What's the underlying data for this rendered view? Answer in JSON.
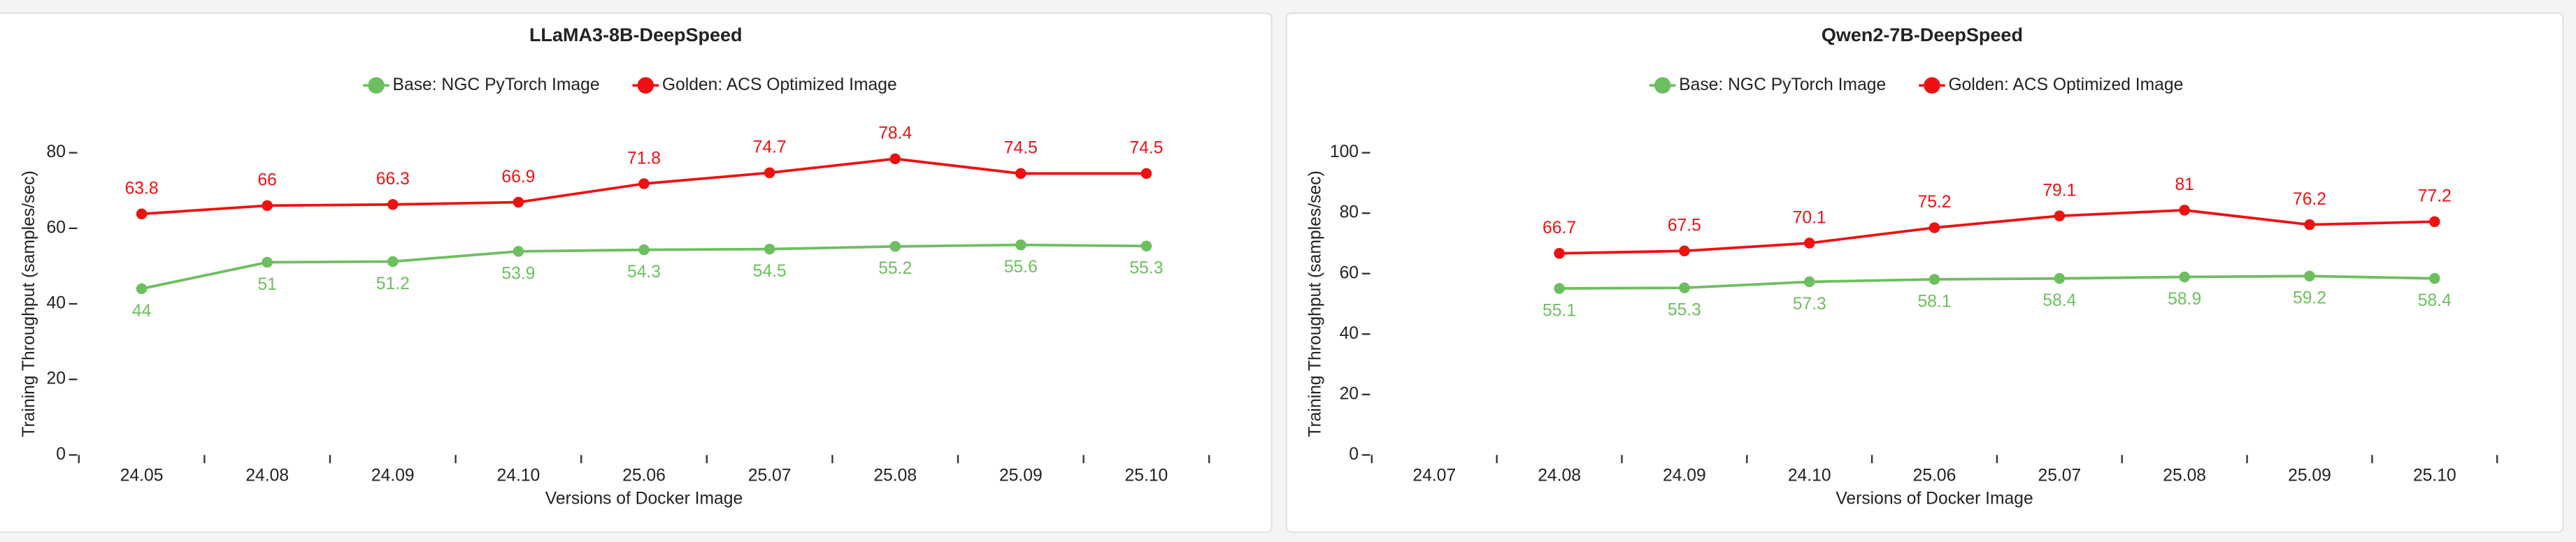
{
  "chart_data": [
    {
      "type": "line",
      "title": "LLaMA3-8B-DeepSpeed",
      "x_label": "Versions of Docker Image",
      "y_label": "Training Throughput (samples/sec)",
      "categories": [
        "24.05",
        "24.08",
        "24.09",
        "24.10",
        "25.06",
        "25.07",
        "25.08",
        "25.09",
        "25.10"
      ],
      "series": [
        {
          "name": "Base: NGC PyTorch Image",
          "color": "#6cbf5e",
          "values": [
            44,
            51,
            51.2,
            53.9,
            54.3,
            54.5,
            55.2,
            55.6,
            55.3
          ]
        },
        {
          "name": "Golden: ACS Optimized Image",
          "color": "#ee1111",
          "values": [
            63.8,
            66,
            66.3,
            66.9,
            71.8,
            74.7,
            78.4,
            74.5,
            74.5
          ]
        }
      ],
      "ylim": [
        0,
        80
      ],
      "yticks": [
        0,
        20,
        40,
        60,
        80
      ],
      "legend": "top"
    },
    {
      "type": "line",
      "title": "Qwen2-7B-DeepSpeed",
      "x_label": "Versions of Docker Image",
      "y_label": "Training Throughput (samples/sec)",
      "categories": [
        "24.07",
        "24.08",
        "24.09",
        "24.10",
        "25.06",
        "25.07",
        "25.08",
        "25.09",
        "25.10"
      ],
      "series": [
        {
          "name": "Base: NGC PyTorch Image",
          "color": "#6cbf5e",
          "values": [
            null,
            55.1,
            55.3,
            57.3,
            58.1,
            58.4,
            58.9,
            59.2,
            58.4
          ]
        },
        {
          "name": "Golden: ACS Optimized Image",
          "color": "#ee1111",
          "values": [
            null,
            66.7,
            67.5,
            70.1,
            75.2,
            79.1,
            81,
            76.2,
            77.2
          ]
        }
      ],
      "ylim": [
        0,
        100
      ],
      "yticks": [
        0,
        20,
        40,
        60,
        80,
        100
      ],
      "legend": "top"
    }
  ]
}
